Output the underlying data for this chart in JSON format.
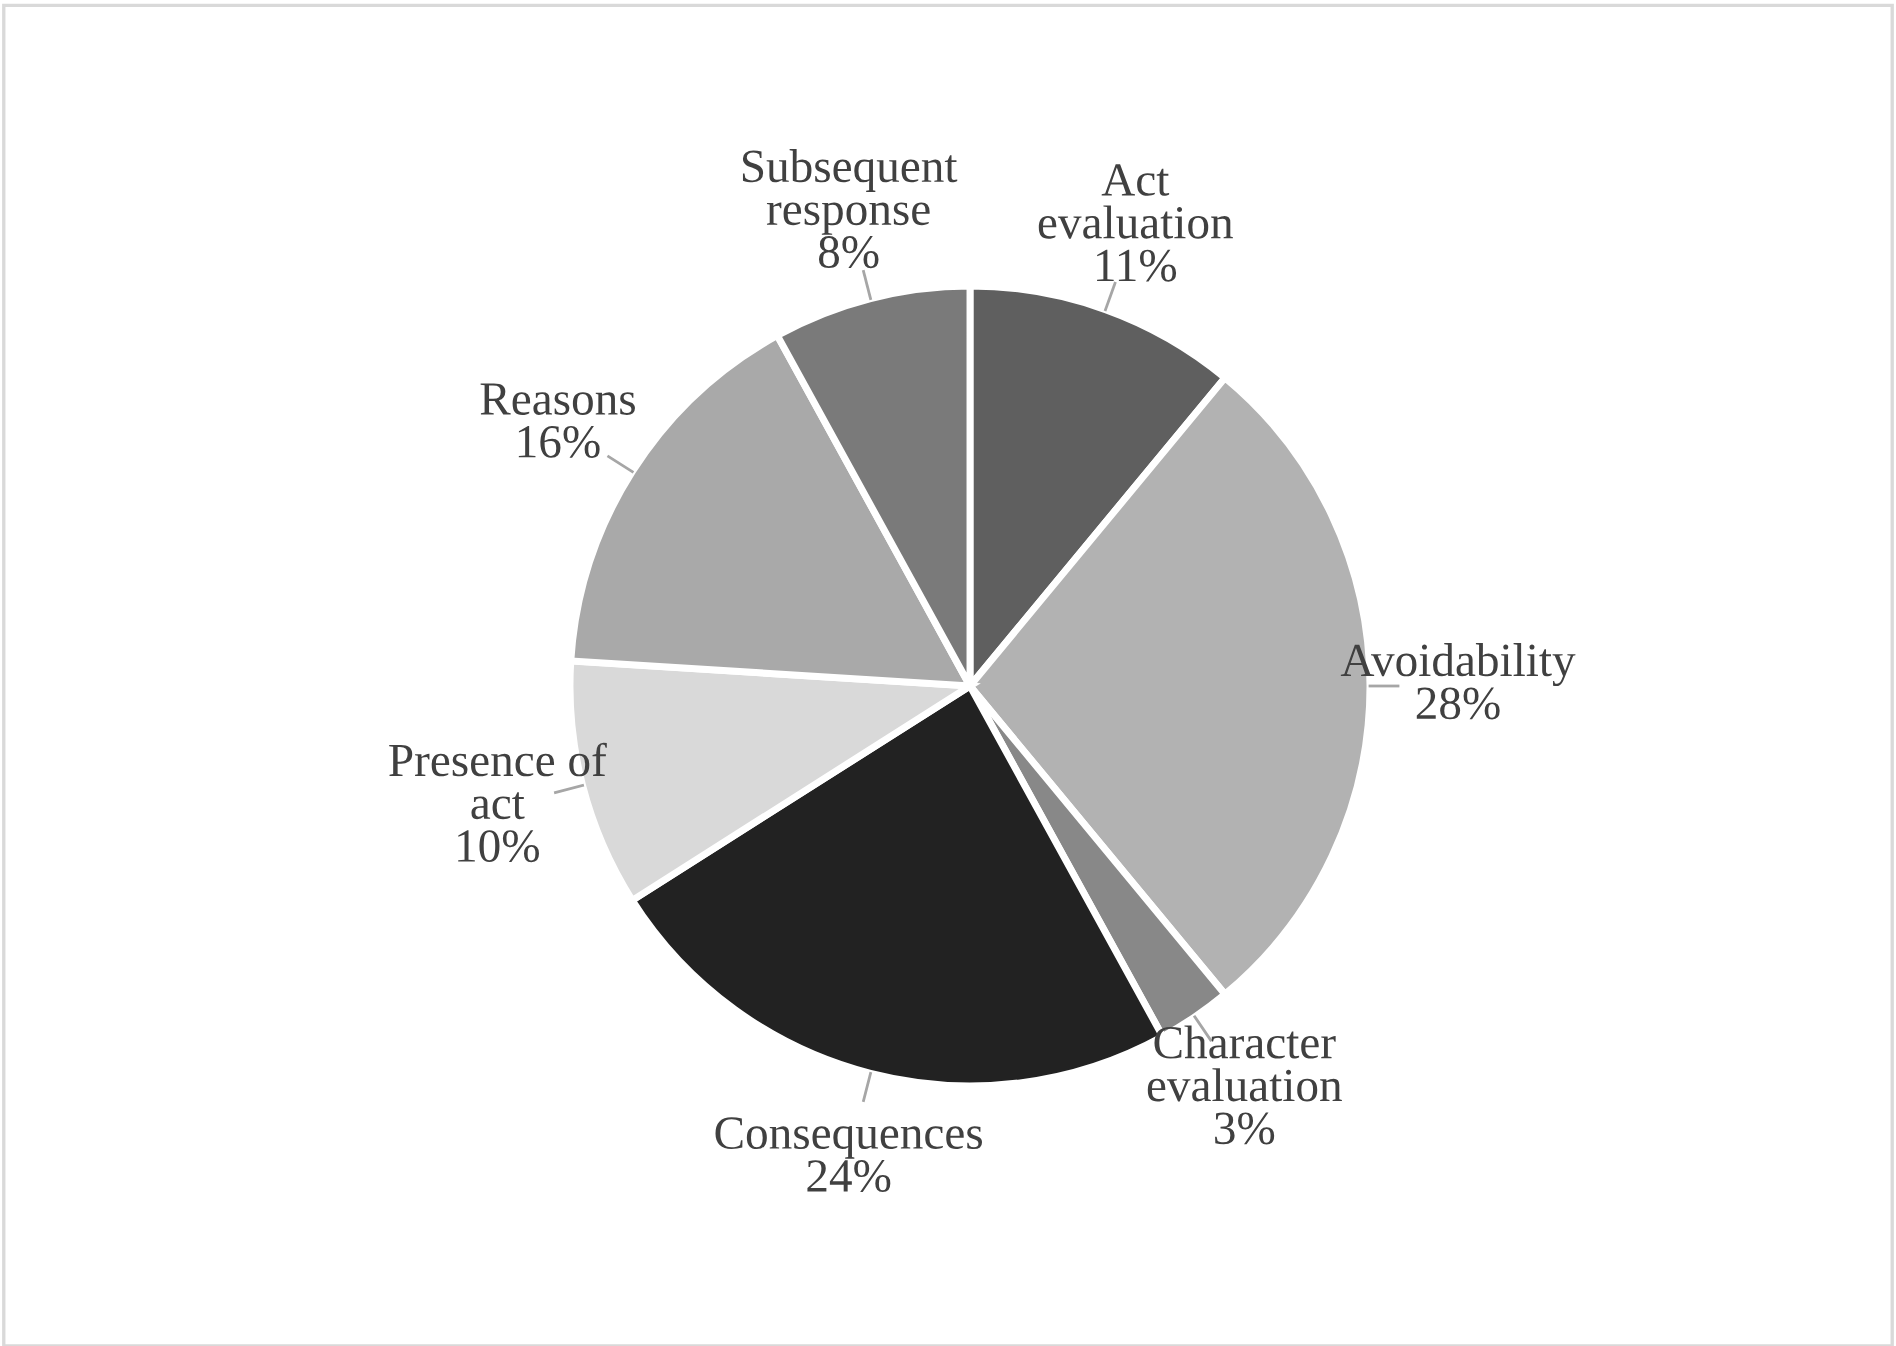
{
  "chart_data": {
    "type": "pie",
    "categories": [
      "Act evaluation",
      "Avoidability",
      "Character evaluation",
      "Consequences",
      "Presence of act",
      "Reasons",
      "Subsequent response"
    ],
    "values": [
      11,
      28,
      3,
      24,
      10,
      16,
      8
    ],
    "value_labels": [
      "11%",
      "28%",
      "3%",
      "24%",
      "10%",
      "16%",
      "8%"
    ],
    "colors": [
      "#5f5f5f",
      "#b2b2b2",
      "#888888",
      "#222222",
      "#d9d9d9",
      "#a9a9a9",
      "#7a7a7a"
    ],
    "legend": false
  }
}
